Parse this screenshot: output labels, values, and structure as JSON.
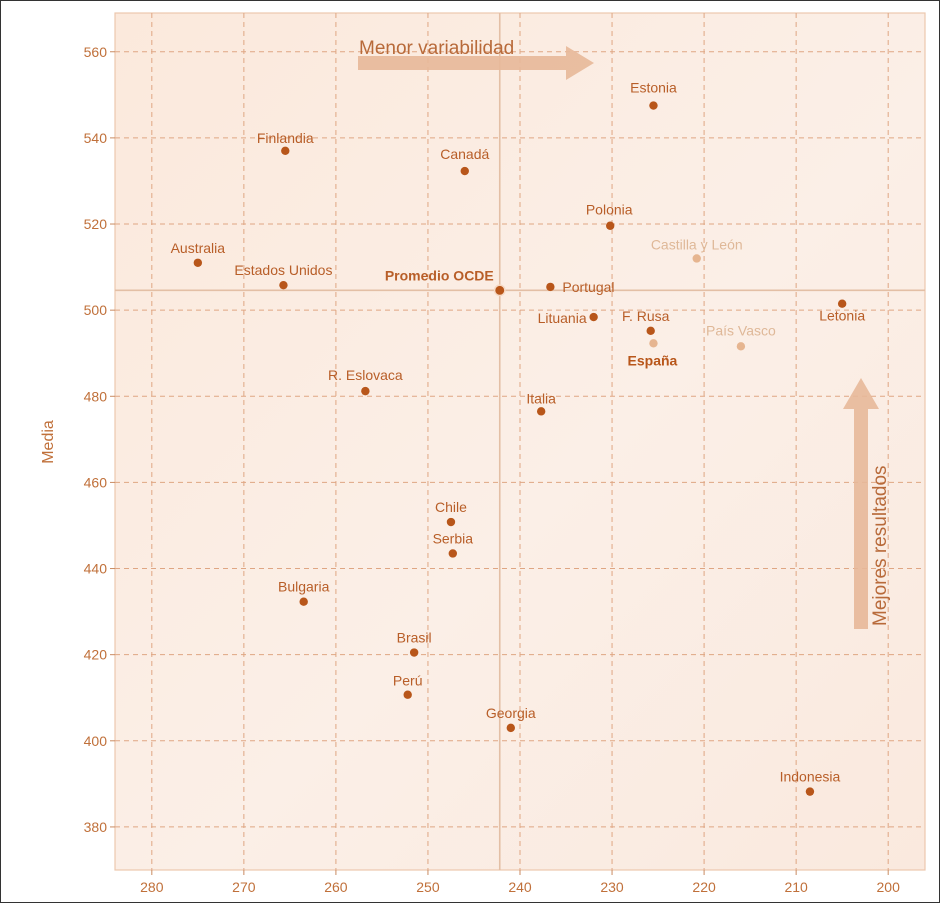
{
  "chart_data": {
    "type": "scatter",
    "title": "",
    "xlabel": "",
    "ylabel": "Media",
    "x_reversed": true,
    "xlim": [
      284,
      196
    ],
    "ylim": [
      370,
      569
    ],
    "xticks": [
      280,
      270,
      260,
      250,
      240,
      230,
      220,
      210,
      200
    ],
    "yticks": [
      380,
      400,
      420,
      440,
      460,
      480,
      500,
      520,
      540,
      560
    ],
    "grid": true,
    "reference_lines": {
      "x": 242.2,
      "y": 504.6
    },
    "colors": {
      "point": "#b8561a",
      "faded": "#e6b590",
      "label": "#b85e28",
      "faded_label": "#dfb898",
      "panel": "#fbece2",
      "grid": "#dfa683"
    },
    "points": [
      {
        "label": "Estonia",
        "x": 225.5,
        "y": 547.5,
        "style": "normal"
      },
      {
        "label": "Finlandia",
        "x": 265.5,
        "y": 537,
        "style": "normal"
      },
      {
        "label": "Canadá",
        "x": 246,
        "y": 532.3,
        "style": "normal"
      },
      {
        "label": "Polonia",
        "x": 230.2,
        "y": 519.6,
        "style": "normal"
      },
      {
        "label": "Castilla y León",
        "x": 220.8,
        "y": 512,
        "style": "faded"
      },
      {
        "label": "Australia",
        "x": 275,
        "y": 511,
        "style": "normal"
      },
      {
        "label": "Estados Unidos",
        "x": 265.7,
        "y": 505.8,
        "style": "normal"
      },
      {
        "label": "Promedio OCDE",
        "x": 242.2,
        "y": 504.6,
        "style": "bold"
      },
      {
        "label": "Portugal",
        "x": 236.7,
        "y": 505.4,
        "style": "normal"
      },
      {
        "label": "Letonia",
        "x": 205,
        "y": 501.5,
        "style": "normal"
      },
      {
        "label": "Lituania",
        "x": 232,
        "y": 498.4,
        "style": "normal"
      },
      {
        "label": "F. Rusa",
        "x": 225.8,
        "y": 495.2,
        "style": "normal"
      },
      {
        "label": "España",
        "x": 225.5,
        "y": 492.3,
        "style": "bold-faded"
      },
      {
        "label": "País Vasco",
        "x": 216,
        "y": 491.6,
        "style": "faded"
      },
      {
        "label": "R. Eslovaca",
        "x": 256.8,
        "y": 481.2,
        "style": "normal"
      },
      {
        "label": "Italia",
        "x": 237.7,
        "y": 476.5,
        "style": "normal"
      },
      {
        "label": "Chile",
        "x": 247.5,
        "y": 450.8,
        "style": "normal"
      },
      {
        "label": "Serbia",
        "x": 247.3,
        "y": 443.5,
        "style": "normal"
      },
      {
        "label": "Bulgaria",
        "x": 263.5,
        "y": 432.3,
        "style": "normal"
      },
      {
        "label": "Brasil",
        "x": 251.5,
        "y": 420.5,
        "style": "normal"
      },
      {
        "label": "Perú",
        "x": 252.2,
        "y": 410.7,
        "style": "normal"
      },
      {
        "label": "Georgia",
        "x": 241,
        "y": 403,
        "style": "normal"
      },
      {
        "label": "Indonesia",
        "x": 208.5,
        "y": 388.2,
        "style": "normal"
      }
    ],
    "annotations": [
      {
        "text": "Menor variabilidad",
        "direction": "right"
      },
      {
        "text": "Mejores resultados",
        "direction": "up"
      }
    ]
  }
}
